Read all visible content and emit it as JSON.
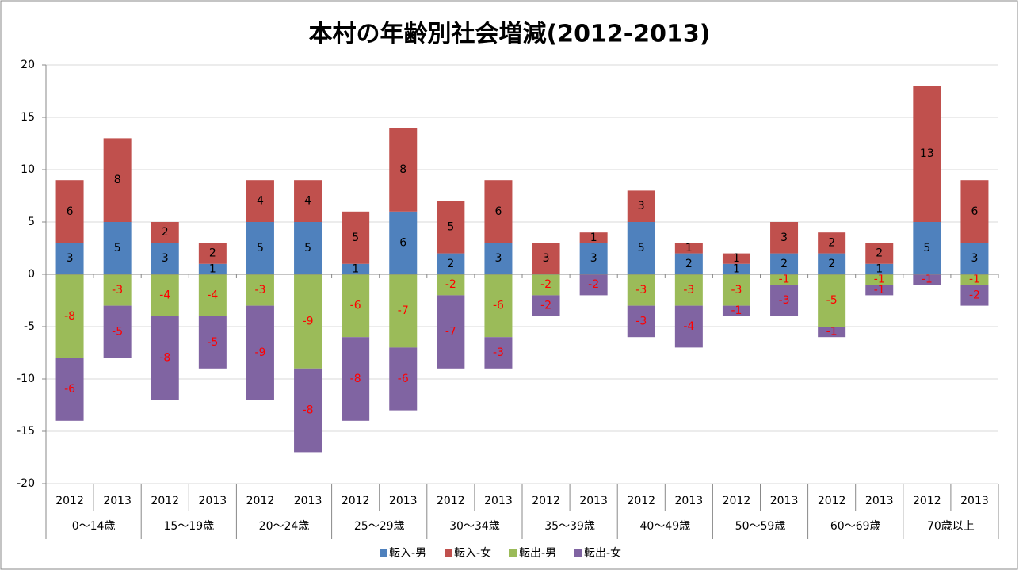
{
  "chart_data": {
    "type": "stacked-bar",
    "title": "本村の年齢別社会増減(2012-2013)",
    "categories": [
      "2012",
      "2013",
      "2012",
      "2013",
      "2012",
      "2013",
      "2012",
      "2013",
      "2012",
      "2013",
      "2012",
      "2013",
      "2012",
      "2013",
      "2012",
      "2013",
      "2012",
      "2013",
      "2012",
      "2013"
    ],
    "groups": [
      "0～14歳",
      "15～19歳",
      "20～24歳",
      "25～29歳",
      "30～34歳",
      "35～39歳",
      "40～49歳",
      "50～59歳",
      "60～69歳",
      "70歳以上"
    ],
    "series": [
      {
        "name": "転入-男",
        "color": "#4f81bd",
        "values": [
          3,
          5,
          3,
          1,
          5,
          5,
          1,
          6,
          2,
          3,
          0,
          3,
          5,
          2,
          1,
          2,
          2,
          1,
          5,
          3
        ]
      },
      {
        "name": "転入-女",
        "color": "#c0504d",
        "values": [
          6,
          8,
          2,
          2,
          4,
          4,
          5,
          8,
          5,
          6,
          3,
          1,
          3,
          1,
          1,
          3,
          2,
          2,
          13,
          6
        ]
      },
      {
        "name": "転出-男",
        "color": "#9bbb59",
        "values": [
          -8,
          -3,
          -4,
          -4,
          -3,
          -9,
          -6,
          -7,
          -2,
          -6,
          -2,
          0,
          -3,
          -3,
          -3,
          -1,
          -5,
          -1,
          0,
          -1
        ]
      },
      {
        "name": "転出-女",
        "color": "#8064a2",
        "values": [
          -6,
          -5,
          -8,
          -5,
          -9,
          -8,
          -8,
          -6,
          -7,
          -3,
          -2,
          -2,
          -3,
          -4,
          -1,
          -3,
          -1,
          -1,
          -1,
          -2
        ]
      }
    ],
    "ylim": [
      -20,
      20
    ],
    "yticks": [
      -20,
      -15,
      -10,
      -5,
      0,
      5,
      10,
      15,
      20
    ],
    "grid": true,
    "legend": "bottom"
  }
}
